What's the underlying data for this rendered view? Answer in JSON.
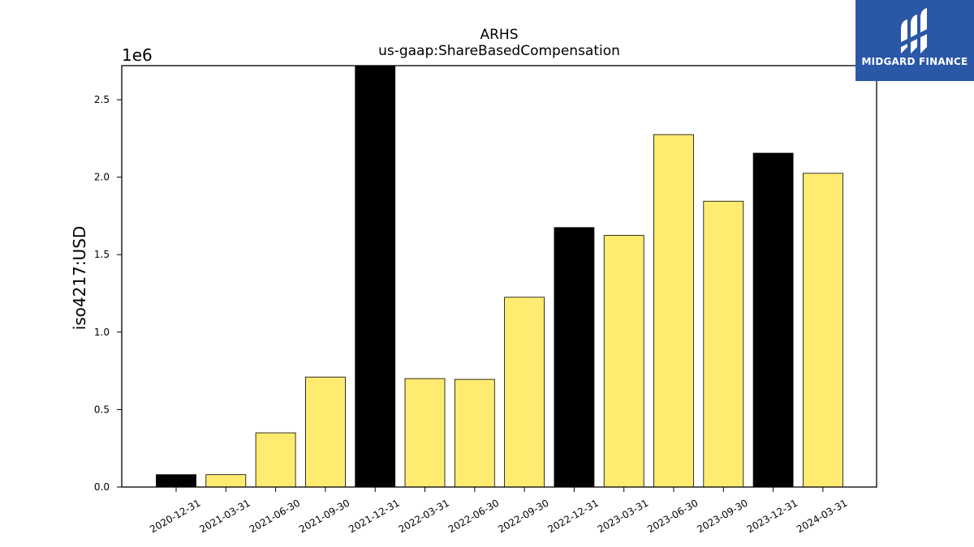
{
  "chart_data": {
    "type": "bar",
    "title": "ARHS",
    "subtitle": "us-gaap:ShareBasedCompensation",
    "ylabel": "iso4217:USD",
    "xlabel": "",
    "y_offset_label": "1e6",
    "y_multiplier": 1000000,
    "ylim": [
      0,
      2720000
    ],
    "yticks": [
      0.0,
      0.5,
      1.0,
      1.5,
      2.0,
      2.5
    ],
    "grid": false,
    "categories": [
      "2020-12-31",
      "2021-03-31",
      "2021-06-30",
      "2021-09-30",
      "2021-12-31",
      "2022-03-31",
      "2022-06-30",
      "2022-09-30",
      "2022-12-31",
      "2023-03-31",
      "2023-06-30",
      "2023-09-30",
      "2023-12-31",
      "2024-03-31"
    ],
    "values": [
      80000,
      80000,
      350000,
      710000,
      2720000,
      700000,
      695000,
      1225000,
      1675000,
      1625000,
      2275000,
      1845000,
      2155000,
      2025000
    ],
    "bar_colors": [
      "#000000",
      "#ffeb70",
      "#ffeb70",
      "#ffeb70",
      "#000000",
      "#ffeb70",
      "#ffeb70",
      "#ffeb70",
      "#000000",
      "#ffeb70",
      "#ffeb70",
      "#ffeb70",
      "#000000",
      "#ffeb70"
    ]
  },
  "logo": {
    "text": "MIDGARD FINANCE",
    "icon": "midgard-logo-icon",
    "background": "#2a57a6"
  }
}
